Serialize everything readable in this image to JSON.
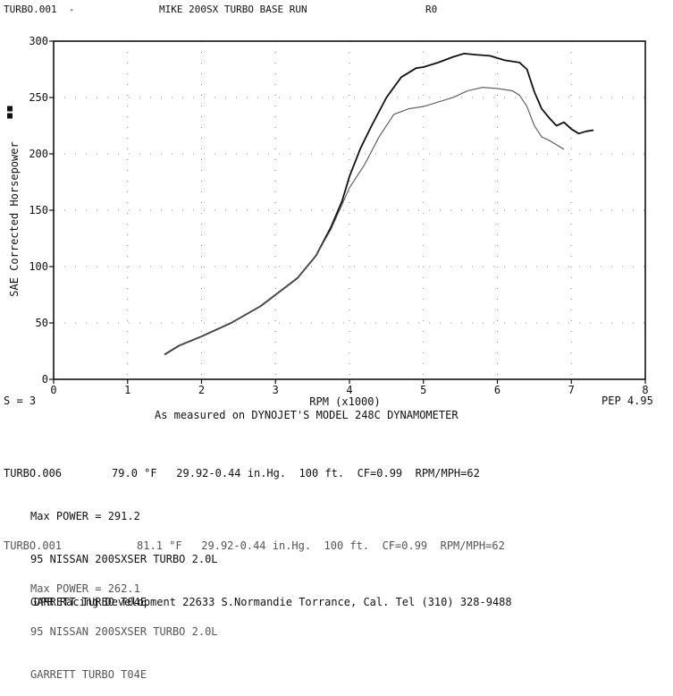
{
  "header": {
    "file": "TURBO.001  -",
    "title": "MIKE 200SX TURBO BASE RUN",
    "tag": "R0"
  },
  "chart_data": {
    "type": "line",
    "xlabel": "RPM (x1000)",
    "ylabel": "SAE Corrected Horsepower",
    "xlim": [
      0,
      8
    ],
    "ylim": [
      0,
      300
    ],
    "xticks": [
      "0",
      "1",
      "2",
      "3",
      "4",
      "5",
      "6",
      "7",
      "8"
    ],
    "yticks": [
      "0",
      "50",
      "100",
      "150",
      "200",
      "250",
      "300"
    ],
    "grid": true,
    "series": [
      {
        "name": "TURBO.006",
        "values": [
          [
            1.5,
            22
          ],
          [
            1.7,
            30
          ],
          [
            2.0,
            38
          ],
          [
            2.4,
            50
          ],
          [
            2.8,
            65
          ],
          [
            3.0,
            75
          ],
          [
            3.3,
            90
          ],
          [
            3.55,
            110
          ],
          [
            3.75,
            135
          ],
          [
            3.9,
            158
          ],
          [
            4.0,
            180
          ],
          [
            4.15,
            205
          ],
          [
            4.3,
            225
          ],
          [
            4.5,
            250
          ],
          [
            4.7,
            268
          ],
          [
            4.9,
            276
          ],
          [
            5.0,
            277
          ],
          [
            5.2,
            281
          ],
          [
            5.4,
            286
          ],
          [
            5.55,
            289
          ],
          [
            5.7,
            288
          ],
          [
            5.9,
            287
          ],
          [
            6.1,
            283
          ],
          [
            6.3,
            281
          ],
          [
            6.4,
            275
          ],
          [
            6.5,
            255
          ],
          [
            6.6,
            240
          ],
          [
            6.7,
            232
          ],
          [
            6.8,
            225
          ],
          [
            6.9,
            228
          ],
          [
            7.0,
            222
          ],
          [
            7.1,
            218
          ],
          [
            7.2,
            220
          ],
          [
            7.3,
            221
          ]
        ]
      },
      {
        "name": "TURBO.001",
        "values": [
          [
            1.5,
            22
          ],
          [
            1.7,
            30
          ],
          [
            2.0,
            38
          ],
          [
            2.4,
            50
          ],
          [
            2.8,
            65
          ],
          [
            3.0,
            75
          ],
          [
            3.3,
            90
          ],
          [
            3.55,
            110
          ],
          [
            3.75,
            133
          ],
          [
            3.9,
            155
          ],
          [
            4.0,
            170
          ],
          [
            4.2,
            190
          ],
          [
            4.4,
            215
          ],
          [
            4.6,
            235
          ],
          [
            4.8,
            240
          ],
          [
            5.0,
            242
          ],
          [
            5.2,
            246
          ],
          [
            5.4,
            250
          ],
          [
            5.6,
            256
          ],
          [
            5.8,
            259
          ],
          [
            6.0,
            258
          ],
          [
            6.2,
            256
          ],
          [
            6.3,
            252
          ],
          [
            6.4,
            242
          ],
          [
            6.5,
            225
          ],
          [
            6.6,
            215
          ],
          [
            6.7,
            212
          ],
          [
            6.8,
            208
          ],
          [
            6.9,
            204
          ]
        ]
      }
    ]
  },
  "labels": {
    "s_value": "S = 3",
    "pep": "PEP 4.95",
    "caption": "As measured on DYNOJET'S MODEL 248C DYNAMOMETER"
  },
  "runs": [
    {
      "file": "TURBO.006",
      "conditions": "79.0 °F   29.92-0.44 in.Hg.  100 ft.  CF=0.99  RPM/MPH=62",
      "max_power": "Max POWER = 291.2",
      "vehicle": "95 NISSAN 200SXSER TURBO 2.0L",
      "turbo": "GARRETT TURBO T04E"
    },
    {
      "file": "TURBO.001",
      "conditions": "81.1 °F   29.92-0.44 in.Hg.  100 ft.  CF=0.99  RPM/MPH=62",
      "max_power": "Max POWER = 262.1",
      "vehicle": "95 NISSAN 200SXSER TURBO 2.0L",
      "turbo": "GARRETT TURBO T04E"
    }
  ],
  "footer": {
    "text": "DPR Racing Development 22633 S.Normandie Torrance, Cal. Tel (310) 328-9488"
  }
}
